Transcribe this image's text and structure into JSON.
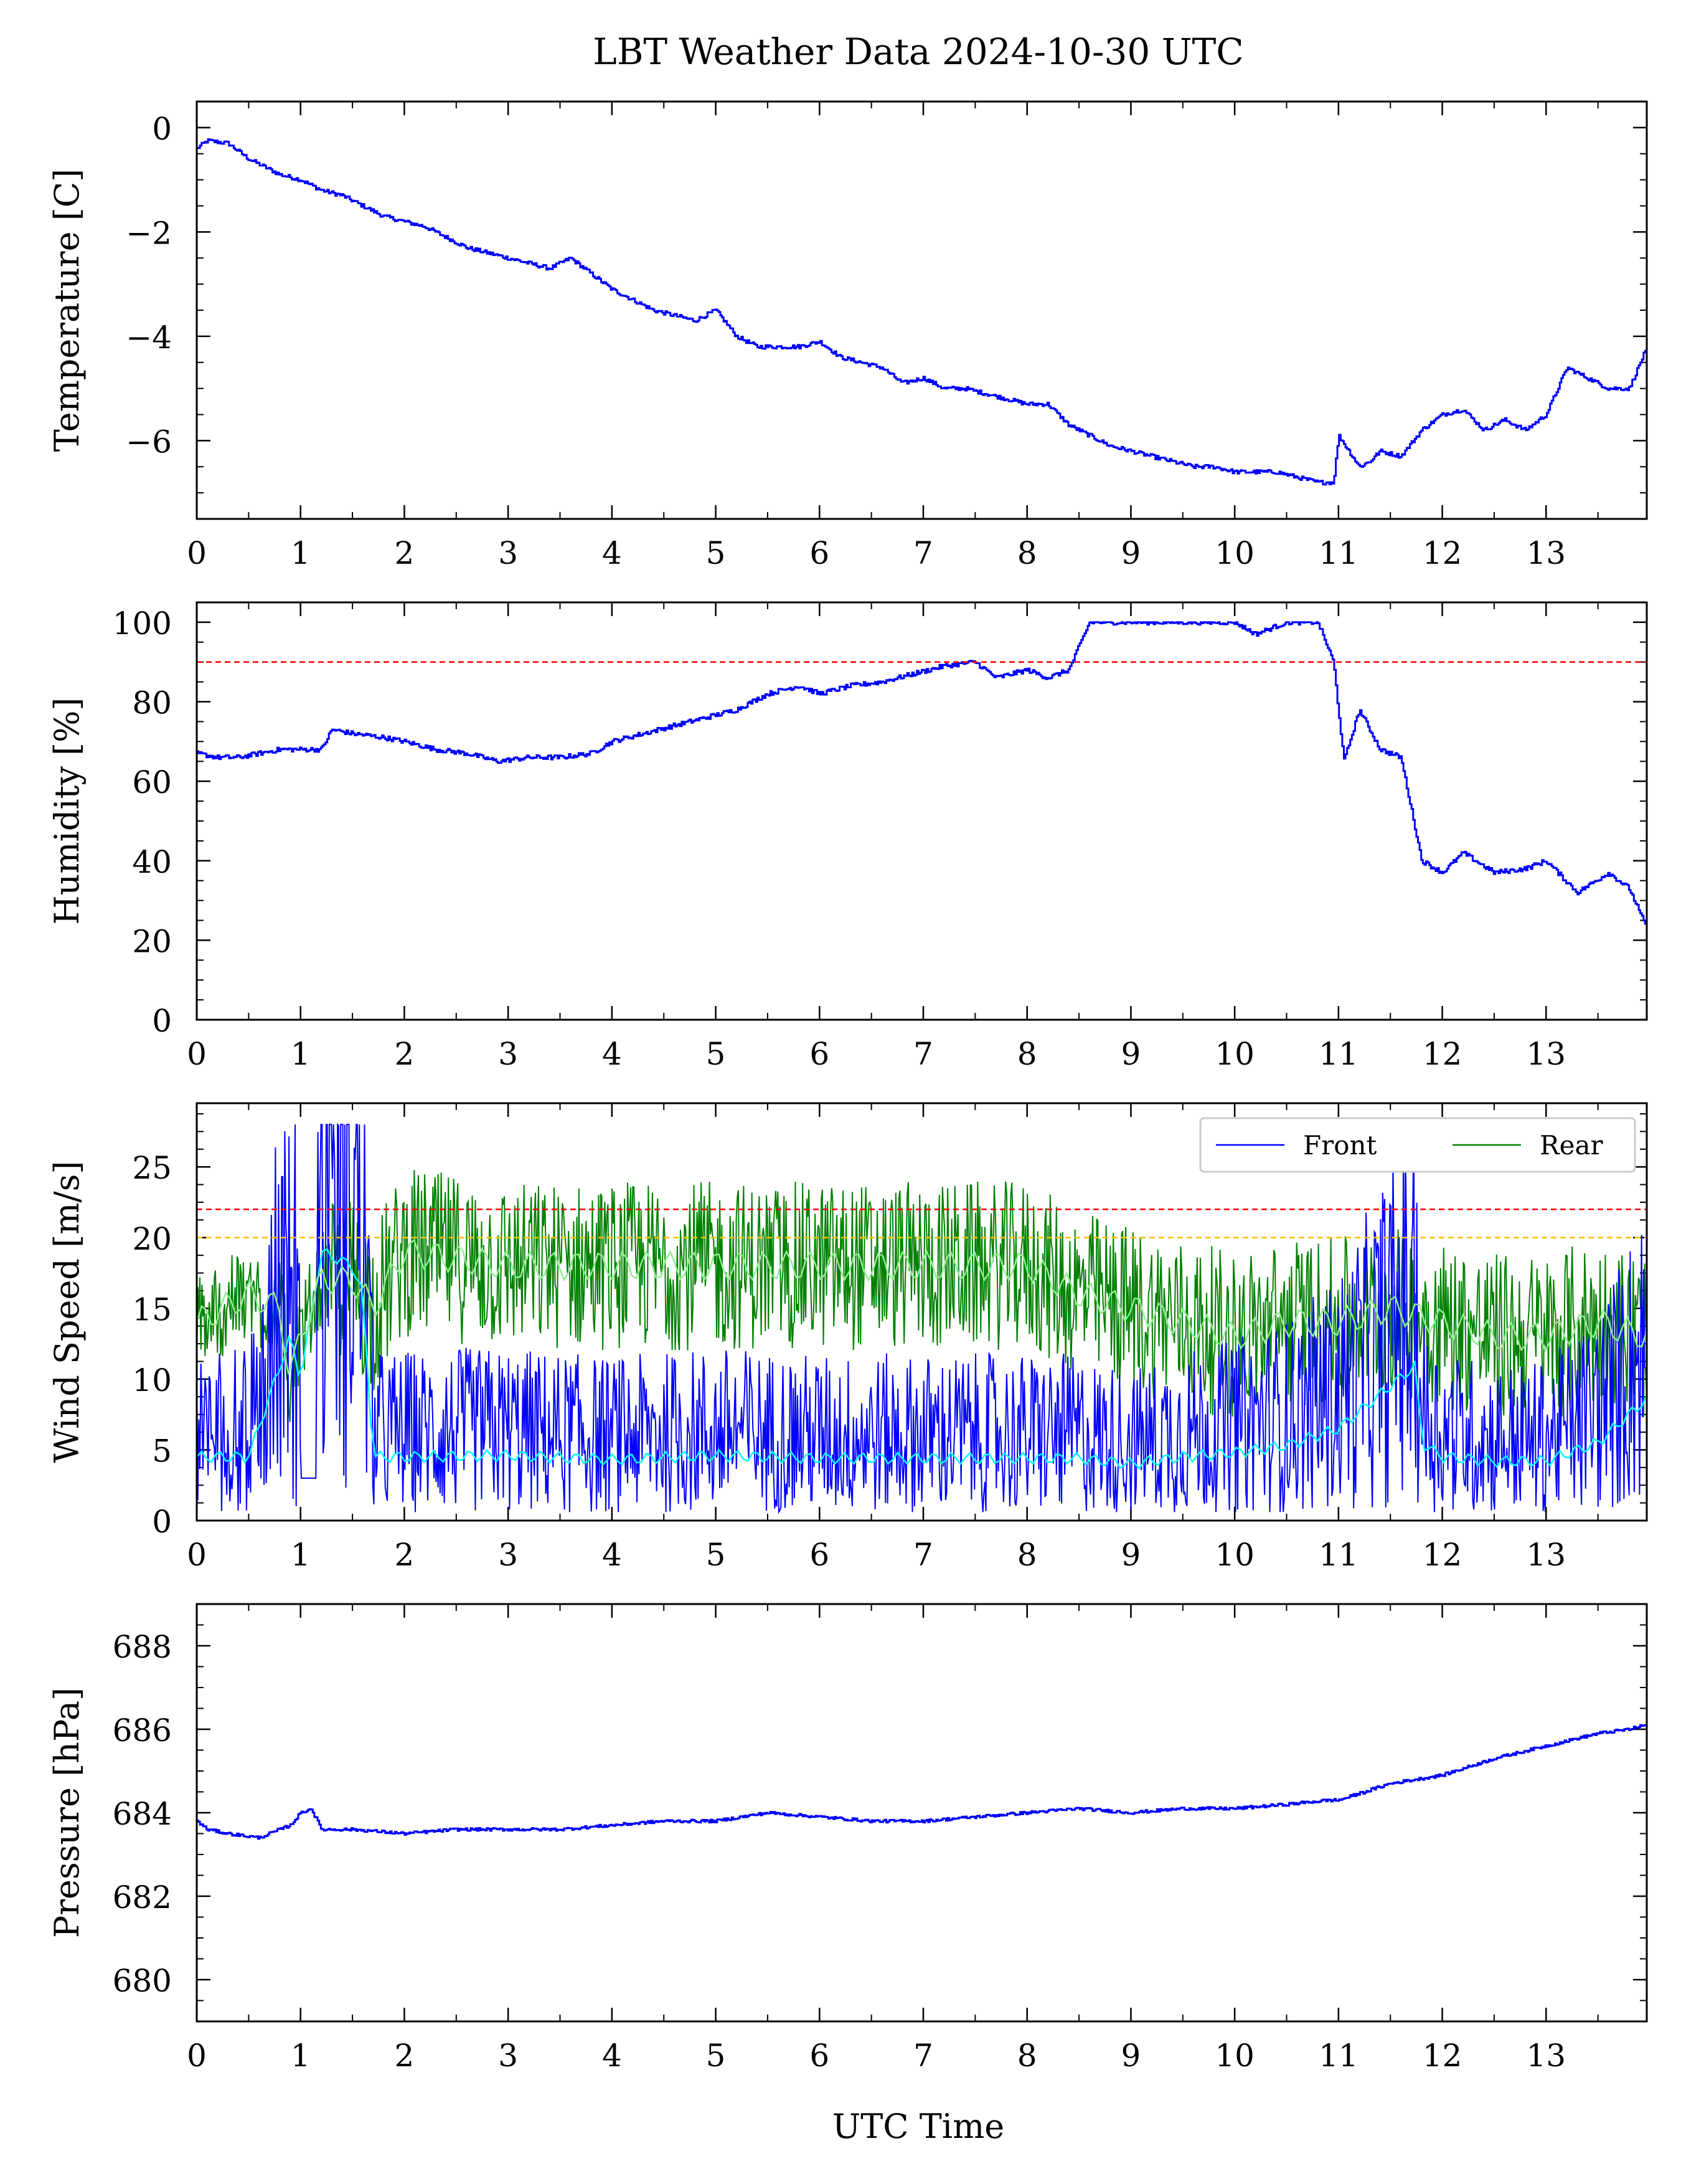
{
  "title": "LBT Weather Data 2024-10-30 UTC",
  "xlabel": "UTC Time",
  "colors": {
    "temperature": "#0000ff",
    "humidity": "#0000ff",
    "front": "#0000ff",
    "front_mean": "#00ffff",
    "rear": "#008000",
    "rear_mean": "#90ee90",
    "pressure": "#0000ff",
    "red_threshold": "#ff0000",
    "yellow_threshold": "#ffbf00"
  },
  "chart_data": [
    {
      "type": "line",
      "ylabel": "Temperature [C]",
      "xlim": [
        0,
        13.97
      ],
      "ylim": [
        -7.5,
        0.5
      ],
      "xticks": [
        "0",
        "1",
        "2",
        "3",
        "4",
        "5",
        "6",
        "7",
        "8",
        "9",
        "10",
        "11",
        "12",
        "13"
      ],
      "yticks": [
        "−6",
        "−4",
        "−2",
        "0"
      ],
      "series": [
        {
          "x": [
            0,
            0.1,
            0.3,
            0.5,
            0.8,
            1.0,
            1.2,
            1.4,
            1.6,
            1.8,
            2.0,
            2.2,
            2.4,
            2.6,
            2.8,
            3.0,
            3.2,
            3.4,
            3.6,
            3.8,
            4.0,
            4.2,
            4.4,
            4.6,
            4.8,
            5.0,
            5.2,
            5.4,
            5.6,
            5.8,
            6.0,
            6.2,
            6.4,
            6.6,
            6.8,
            7.0,
            7.2,
            7.4,
            7.6,
            7.8,
            8.0,
            8.2,
            8.4,
            8.6,
            8.8,
            9.0,
            9.2,
            9.4,
            9.6,
            9.8,
            10.0,
            10.2,
            10.4,
            10.6,
            10.8,
            10.95,
            11.0,
            11.1,
            11.2,
            11.3,
            11.4,
            11.6,
            11.8,
            12.0,
            12.2,
            12.4,
            12.6,
            12.8,
            13.0,
            13.2,
            13.4,
            13.6,
            13.8,
            13.95
          ],
          "y": [
            -0.4,
            -0.25,
            -0.3,
            -0.6,
            -0.9,
            -1.0,
            -1.2,
            -1.3,
            -1.5,
            -1.7,
            -1.8,
            -1.9,
            -2.1,
            -2.3,
            -2.4,
            -2.5,
            -2.6,
            -2.7,
            -2.5,
            -2.8,
            -3.1,
            -3.3,
            -3.5,
            -3.6,
            -3.7,
            -3.5,
            -4.0,
            -4.2,
            -4.2,
            -4.2,
            -4.1,
            -4.4,
            -4.5,
            -4.6,
            -4.9,
            -4.8,
            -5.0,
            -5.0,
            -5.1,
            -5.2,
            -5.3,
            -5.3,
            -5.7,
            -5.9,
            -6.1,
            -6.2,
            -6.3,
            -6.4,
            -6.5,
            -6.5,
            -6.6,
            -6.6,
            -6.6,
            -6.7,
            -6.8,
            -6.8,
            -5.9,
            -6.2,
            -6.5,
            -6.4,
            -6.2,
            -6.3,
            -5.8,
            -5.5,
            -5.4,
            -5.8,
            -5.6,
            -5.8,
            -5.5,
            -4.6,
            -4.8,
            -5.0,
            -5.0,
            -4.3
          ]
        }
      ]
    },
    {
      "type": "line",
      "ylabel": "Humidity [%]",
      "xlim": [
        0,
        13.97
      ],
      "ylim": [
        0,
        105
      ],
      "xticks": [
        "0",
        "1",
        "2",
        "3",
        "4",
        "5",
        "6",
        "7",
        "8",
        "9",
        "10",
        "11",
        "12",
        "13"
      ],
      "yticks": [
        "0",
        "20",
        "40",
        "60",
        "80",
        "100"
      ],
      "hlines": [
        {
          "y": 90,
          "color": "red"
        }
      ],
      "series": [
        {
          "x": [
            0,
            0.2,
            0.4,
            0.6,
            0.8,
            1.0,
            1.2,
            1.3,
            1.5,
            1.8,
            2.0,
            2.3,
            2.6,
            2.9,
            3.2,
            3.5,
            3.8,
            4.0,
            4.3,
            4.6,
            4.9,
            5.2,
            5.5,
            5.8,
            6.0,
            6.3,
            6.6,
            6.9,
            7.2,
            7.5,
            7.7,
            8.0,
            8.2,
            8.4,
            8.6,
            9.0,
            9.5,
            10.0,
            10.2,
            10.5,
            10.8,
            10.95,
            11.05,
            11.2,
            11.4,
            11.6,
            11.8,
            12.0,
            12.2,
            12.5,
            12.8,
            13.0,
            13.3,
            13.6,
            13.8,
            13.95
          ],
          "y": [
            67,
            66,
            66,
            67,
            68,
            68,
            68,
            73,
            72,
            71,
            70,
            68,
            67,
            65,
            66,
            66,
            67,
            70,
            72,
            74,
            76,
            78,
            82,
            84,
            82,
            84,
            85,
            87,
            89,
            90,
            86,
            88,
            86,
            88,
            100,
            100,
            100,
            100,
            97,
            100,
            100,
            90,
            65,
            78,
            68,
            66,
            40,
            37,
            42,
            37,
            38,
            40,
            32,
            37,
            33,
            24
          ]
        }
      ]
    },
    {
      "type": "line",
      "ylabel": "Wind Speed [m/s]",
      "xlim": [
        0,
        13.97
      ],
      "ylim": [
        0,
        29.5
      ],
      "xticks": [
        "0",
        "1",
        "2",
        "3",
        "4",
        "5",
        "6",
        "7",
        "8",
        "9",
        "10",
        "11",
        "12",
        "13"
      ],
      "yticks": [
        "0",
        "5",
        "10",
        "15",
        "20",
        "25"
      ],
      "hlines": [
        {
          "y": 22,
          "color": "red"
        },
        {
          "y": 20,
          "color": "orange"
        }
      ],
      "legend": {
        "position": "top-right",
        "entries": [
          "Front",
          "Rear"
        ]
      },
      "series": [
        {
          "name": "Front",
          "x": [
            0,
            0.5,
            0.9,
            1.0,
            1.2,
            1.5,
            1.6,
            1.7,
            2.0,
            3.0,
            4.0,
            5.0,
            6.0,
            7.0,
            8.0,
            8.5,
            9.0,
            9.5,
            10.0,
            10.5,
            11.0,
            11.5,
            11.75,
            11.8,
            12.0,
            12.5,
            13.0,
            13.5,
            13.95
          ],
          "y": [
            4.5,
            4.5,
            13,
            10,
            19,
            18,
            16,
            4.5,
            4.5,
            4.6,
            4.3,
            4.6,
            4.4,
            4.4,
            4.4,
            4.4,
            4.0,
            4.5,
            4.8,
            5.3,
            6.5,
            9.5,
            11,
            5.5,
            4.5,
            4.2,
            4.2,
            5.5,
            8.5
          ]
        },
        {
          "name": "Rear",
          "x": [
            0,
            0.5,
            0.8,
            0.9,
            1.0,
            1.2,
            1.5,
            1.7,
            2.0,
            3.0,
            4.0,
            5.0,
            6.0,
            7.0,
            8.0,
            8.5,
            9.0,
            9.5,
            10.0,
            10.5,
            11.0,
            11.5,
            12.0,
            12.5,
            13.0,
            13.5,
            13.95
          ],
          "y": [
            14,
            16,
            15,
            10,
            13,
            17,
            17,
            15,
            19,
            18,
            18,
            18,
            18,
            18,
            18,
            16,
            15,
            14,
            13,
            14,
            14,
            15,
            14,
            13,
            13,
            14,
            13
          ]
        }
      ]
    },
    {
      "type": "line",
      "ylabel": "Pressure [hPa]",
      "xlim": [
        0,
        13.97
      ],
      "ylim": [
        679,
        689
      ],
      "xticks": [
        "0",
        "1",
        "2",
        "3",
        "4",
        "5",
        "6",
        "7",
        "8",
        "9",
        "10",
        "11",
        "12",
        "13"
      ],
      "yticks": [
        "680",
        "682",
        "684",
        "686",
        "688"
      ],
      "series": [
        {
          "x": [
            0,
            0.1,
            0.3,
            0.6,
            0.9,
            1.0,
            1.1,
            1.2,
            1.5,
            2.0,
            2.5,
            3.0,
            3.5,
            4.0,
            4.5,
            5.0,
            5.5,
            6.0,
            6.5,
            7.0,
            7.5,
            8.0,
            8.5,
            9.0,
            9.5,
            10.0,
            10.5,
            10.9,
            11.0,
            11.5,
            12.0,
            12.5,
            13.0,
            13.5,
            13.8,
            13.95
          ],
          "y": [
            683.8,
            683.6,
            683.5,
            683.4,
            683.7,
            684.0,
            684.1,
            683.6,
            683.6,
            683.5,
            683.6,
            683.6,
            683.6,
            683.7,
            683.8,
            683.8,
            684.0,
            683.9,
            683.8,
            683.8,
            683.9,
            684.0,
            684.1,
            684.0,
            684.1,
            684.1,
            684.2,
            684.3,
            684.3,
            684.7,
            684.9,
            685.3,
            685.6,
            685.9,
            686.0,
            686.1
          ]
        }
      ]
    }
  ]
}
